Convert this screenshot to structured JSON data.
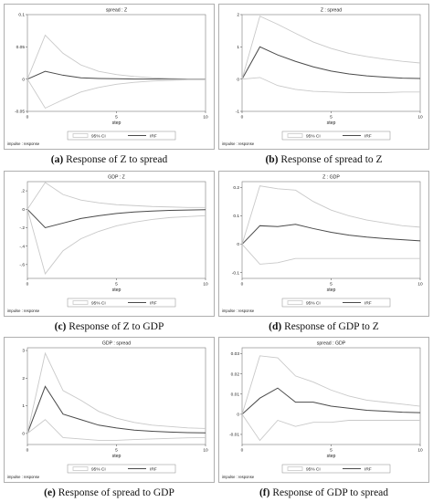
{
  "chart_data": [
    {
      "type": "line",
      "title": "spread : Z",
      "caption_letter": "(a)",
      "caption_text": "Response of Z to spread",
      "xlabel": "step",
      "note": "impulse : response",
      "xlim": [
        0,
        10
      ],
      "ylim": [
        -0.05,
        0.1
      ],
      "xticks": [
        0,
        5,
        10
      ],
      "yticks": [
        -0.05,
        0,
        0.05,
        0.1
      ],
      "ytick_labels": [
        "-0.05",
        "0",
        "0.05",
        "0.1"
      ],
      "legend": [
        "95% CI",
        "IRF"
      ],
      "x": [
        0,
        1,
        2,
        3,
        4,
        5,
        6,
        7,
        8,
        9,
        10
      ],
      "series": [
        {
          "name": "IRF",
          "values": [
            0,
            0.012,
            0.006,
            0.002,
            0.001,
            0.0005,
            0,
            0,
            0,
            0,
            0
          ]
        },
        {
          "name": "95% CI upper",
          "values": [
            0,
            0.068,
            0.04,
            0.022,
            0.012,
            0.007,
            0.004,
            0.002,
            0.001,
            0.0005,
            0.0005
          ]
        },
        {
          "name": "95% CI lower",
          "values": [
            0,
            -0.045,
            -0.032,
            -0.02,
            -0.013,
            -0.008,
            -0.005,
            -0.003,
            -0.002,
            -0.001,
            -0.001
          ]
        }
      ]
    },
    {
      "type": "line",
      "title": "Z : spread",
      "caption_letter": "(b)",
      "caption_text": "Response of spread to Z",
      "xlabel": "step",
      "note": "impulse : response",
      "xlim": [
        0,
        10
      ],
      "ylim": [
        -1,
        2
      ],
      "xticks": [
        0,
        5,
        10
      ],
      "yticks": [
        -1,
        0,
        1,
        2
      ],
      "ytick_labels": [
        "-1",
        "0",
        "1",
        "2"
      ],
      "legend": [
        "95% CI",
        "IRF"
      ],
      "x": [
        0,
        1,
        2,
        3,
        4,
        5,
        6,
        7,
        8,
        9,
        10
      ],
      "series": [
        {
          "name": "IRF",
          "values": [
            0,
            1.0,
            0.75,
            0.55,
            0.38,
            0.25,
            0.16,
            0.1,
            0.06,
            0.03,
            0.02
          ]
        },
        {
          "name": "95% CI upper",
          "values": [
            0,
            1.95,
            1.7,
            1.42,
            1.15,
            0.95,
            0.8,
            0.7,
            0.62,
            0.55,
            0.5
          ]
        },
        {
          "name": "95% CI lower",
          "values": [
            0,
            0.05,
            -0.2,
            -0.32,
            -0.38,
            -0.4,
            -0.42,
            -0.42,
            -0.42,
            -0.4,
            -0.4
          ]
        }
      ]
    },
    {
      "type": "line",
      "title": "GDP : Z",
      "caption_letter": "(c)",
      "caption_text": "Response of Z to GDP",
      "xlabel": "step",
      "note": "impulse : response",
      "xlim": [
        0,
        10
      ],
      "ylim": [
        -0.75,
        0.3
      ],
      "xticks": [
        0,
        5,
        10
      ],
      "yticks": [
        -0.6,
        -0.4,
        -0.2,
        0,
        0.2
      ],
      "ytick_labels": [
        "-.6",
        "-.4",
        "-.2",
        "0",
        ".2"
      ],
      "legend": [
        "95% CI",
        "IRF"
      ],
      "x": [
        0,
        1,
        2,
        3,
        4,
        5,
        6,
        7,
        8,
        9,
        10
      ],
      "series": [
        {
          "name": "IRF",
          "values": [
            0,
            -0.2,
            -0.15,
            -0.1,
            -0.07,
            -0.045,
            -0.03,
            -0.02,
            -0.012,
            -0.008,
            -0.005
          ]
        },
        {
          "name": "95% CI upper",
          "values": [
            0,
            0.29,
            0.16,
            0.1,
            0.07,
            0.05,
            0.04,
            0.03,
            0.025,
            0.02,
            0.02
          ]
        },
        {
          "name": "95% CI lower",
          "values": [
            0,
            -0.7,
            -0.45,
            -0.32,
            -0.24,
            -0.18,
            -0.14,
            -0.11,
            -0.09,
            -0.08,
            -0.07
          ]
        }
      ]
    },
    {
      "type": "line",
      "title": "Z : GDP",
      "caption_letter": "(d)",
      "caption_text": "Response of GDP to Z",
      "xlabel": "step",
      "note": "impulse : response",
      "xlim": [
        0,
        10
      ],
      "ylim": [
        -0.12,
        0.22
      ],
      "xticks": [
        0,
        5,
        10
      ],
      "yticks": [
        -0.1,
        0,
        0.1,
        0.2
      ],
      "ytick_labels": [
        "-0.1",
        "0",
        "0.1",
        "0.2"
      ],
      "legend": [
        "95% CI",
        "IRF"
      ],
      "x": [
        0,
        1,
        2,
        3,
        4,
        5,
        6,
        7,
        8,
        9,
        10
      ],
      "series": [
        {
          "name": "IRF",
          "values": [
            0,
            0.065,
            0.062,
            0.07,
            0.055,
            0.042,
            0.032,
            0.025,
            0.02,
            0.016,
            0.012
          ]
        },
        {
          "name": "95% CI upper",
          "values": [
            0,
            0.205,
            0.195,
            0.19,
            0.15,
            0.12,
            0.1,
            0.085,
            0.075,
            0.065,
            0.06
          ]
        },
        {
          "name": "95% CI lower",
          "values": [
            0,
            -0.07,
            -0.065,
            -0.05,
            -0.05,
            -0.05,
            -0.05,
            -0.05,
            -0.05,
            -0.05,
            -0.05
          ]
        }
      ]
    },
    {
      "type": "line",
      "title": "GDP : spread",
      "caption_letter": "(e)",
      "caption_text": "Response of spread to GDP",
      "xlabel": "step",
      "note": "impulse : response",
      "xlim": [
        0,
        10
      ],
      "ylim": [
        -0.4,
        3.1
      ],
      "xticks": [
        0,
        5,
        10
      ],
      "yticks": [
        0,
        1,
        2,
        3
      ],
      "ytick_labels": [
        "0",
        "1",
        "2",
        "3"
      ],
      "legend": [
        "95% CI",
        "IRF"
      ],
      "x": [
        0,
        1,
        2,
        3,
        4,
        5,
        6,
        7,
        8,
        9,
        10
      ],
      "series": [
        {
          "name": "IRF",
          "values": [
            0,
            1.7,
            0.7,
            0.5,
            0.3,
            0.2,
            0.12,
            0.08,
            0.05,
            0.03,
            0.02
          ]
        },
        {
          "name": "95% CI upper",
          "values": [
            0,
            2.9,
            1.55,
            1.2,
            0.8,
            0.55,
            0.4,
            0.3,
            0.25,
            0.2,
            0.18
          ]
        },
        {
          "name": "95% CI lower",
          "values": [
            0,
            0.5,
            -0.15,
            -0.2,
            -0.25,
            -0.25,
            -0.22,
            -0.2,
            -0.18,
            -0.16,
            -0.15
          ]
        }
      ]
    },
    {
      "type": "line",
      "title": "spread : GDP",
      "caption_letter": "(f)",
      "caption_text": "Response of GDP to spread",
      "xlabel": "step",
      "note": "impulse : response",
      "xlim": [
        0,
        10
      ],
      "ylim": [
        -0.015,
        0.033
      ],
      "xticks": [
        0,
        5,
        10
      ],
      "yticks": [
        -0.01,
        0,
        0.01,
        0.02,
        0.03
      ],
      "ytick_labels": [
        "-0.01",
        "0",
        "0.01",
        "0.02",
        "0.03"
      ],
      "legend": [
        "95% CI",
        "IRF"
      ],
      "x": [
        0,
        1,
        2,
        3,
        4,
        5,
        6,
        7,
        8,
        9,
        10
      ],
      "series": [
        {
          "name": "IRF",
          "values": [
            0,
            0.008,
            0.013,
            0.006,
            0.006,
            0.004,
            0.003,
            0.002,
            0.0015,
            0.001,
            0.0008
          ]
        },
        {
          "name": "95% CI upper",
          "values": [
            0,
            0.029,
            0.028,
            0.019,
            0.016,
            0.012,
            0.009,
            0.007,
            0.006,
            0.005,
            0.004
          ]
        },
        {
          "name": "95% CI lower",
          "values": [
            0,
            -0.013,
            -0.003,
            -0.006,
            -0.004,
            -0.004,
            -0.003,
            -0.003,
            -0.003,
            -0.003,
            -0.003
          ]
        }
      ]
    }
  ]
}
